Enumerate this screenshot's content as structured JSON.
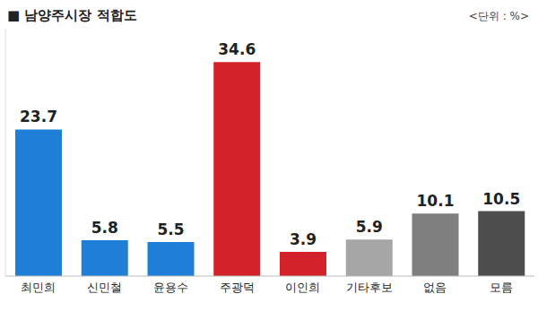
{
  "chart_data": {
    "type": "bar",
    "title": "■ 남양주시장 적합도",
    "subtitle": "<단위 : %>",
    "categories": [
      "최민희",
      "신민철",
      "윤용수",
      "주광덕",
      "이인희",
      "기타후보",
      "없음",
      "모름"
    ],
    "values": [
      23.7,
      5.8,
      5.5,
      34.6,
      3.9,
      5.9,
      10.1,
      10.5
    ],
    "colors": [
      "#1f7fd6",
      "#1f7fd6",
      "#1f7fd6",
      "#d3222a",
      "#d3222a",
      "#a6a6a6",
      "#7f7f7f",
      "#4d4d4d"
    ],
    "ylim": [
      0,
      40
    ],
    "yticks": [
      0,
      40
    ],
    "data_labels": true,
    "tick_labels": "x",
    "grid": false
  }
}
